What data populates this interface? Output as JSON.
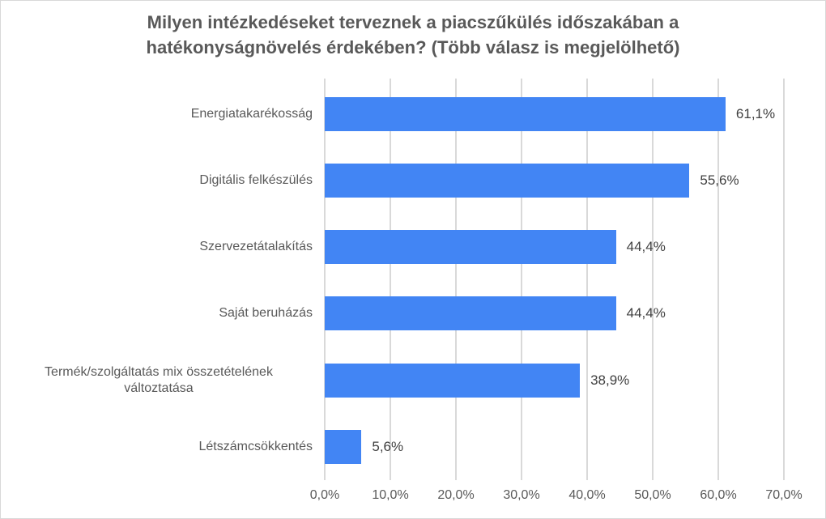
{
  "chart_data": {
    "type": "bar",
    "orientation": "horizontal",
    "title": "Milyen intézkedéseket terveznek a piacszűkülés időszakában a hatékonyságnövelés érdekében? (Több válasz is megjelölhető)",
    "title_lines": [
      "Milyen intézkedéseket terveznek a piacszűkülés időszakában a",
      "hatékonyságnövelés érdekében? (Több válasz is megjelölhető)"
    ],
    "categories": [
      "Energiatakarékosság",
      "Digitális felkészülés",
      "Szervezetátalakítás",
      "Saját beruházás",
      "Termék/szolgáltatás mix összetételének változtatása",
      "Létszámcsökkentés"
    ],
    "category_lines": [
      [
        "Energiatakarékosság"
      ],
      [
        "Digitális felkészülés"
      ],
      [
        "Szervezetátalakítás"
      ],
      [
        "Saját beruházás"
      ],
      [
        "Termék/szolgáltatás mix összetételének",
        "változtatása"
      ],
      [
        "Létszámcsökkentés"
      ]
    ],
    "values": [
      61.1,
      55.6,
      44.4,
      44.4,
      38.9,
      5.6
    ],
    "value_labels": [
      "61,1%",
      "55,6%",
      "44,4%",
      "44,4%",
      "38,9%",
      "5,6%"
    ],
    "xlabel": "",
    "ylabel": "",
    "xlim": [
      0,
      70
    ],
    "x_ticks": [
      "0,0%",
      "10,0%",
      "20,0%",
      "30,0%",
      "40,0%",
      "50,0%",
      "60,0%",
      "70,0%"
    ],
    "grid": true,
    "legend": "none",
    "bar_color": "#4285f4"
  }
}
